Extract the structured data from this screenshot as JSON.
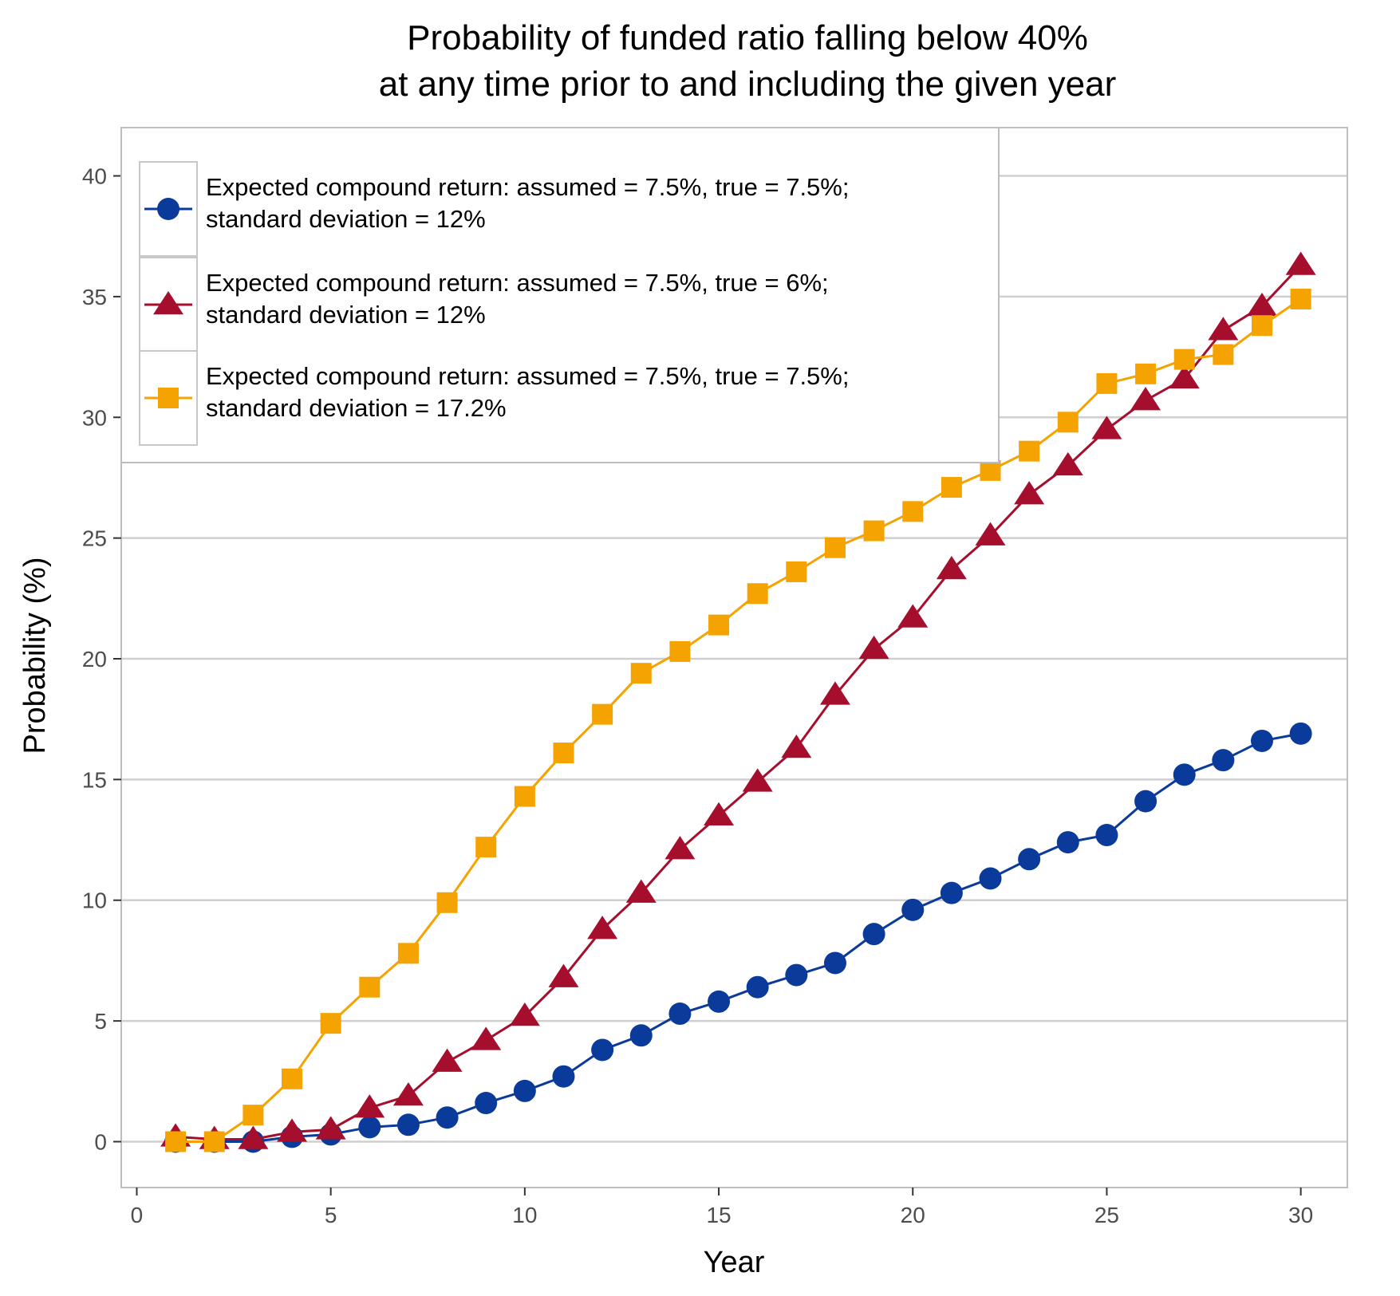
{
  "chart_data": {
    "type": "line",
    "title": [
      "Probability of funded ratio falling below 40%",
      "at any time prior to and including the given year"
    ],
    "xlabel": "Year",
    "ylabel": "Probability (%)",
    "xlim": [
      -0.4,
      31.2
    ],
    "ylim": [
      -1.9,
      42.0
    ],
    "xticks": [
      0,
      5,
      10,
      15,
      20,
      25,
      30
    ],
    "yticks": [
      0,
      5,
      10,
      15,
      20,
      25,
      30,
      35,
      40
    ],
    "grid": "horizontal-major",
    "legend_position": "top-left",
    "x": [
      1,
      2,
      3,
      4,
      5,
      6,
      7,
      8,
      9,
      10,
      11,
      12,
      13,
      14,
      15,
      16,
      17,
      18,
      19,
      20,
      21,
      22,
      23,
      24,
      25,
      26,
      27,
      28,
      29,
      30
    ],
    "series": [
      {
        "name_lines": [
          "Expected compound return: assumed = 7.5%, true = 7.5%;",
          "standard deviation = 12%"
        ],
        "color": "#0a3a9a",
        "marker": "circle",
        "values": [
          0,
          0,
          0,
          0.2,
          0.3,
          0.6,
          0.7,
          1.0,
          1.6,
          2.1,
          2.7,
          3.8,
          4.4,
          5.3,
          5.8,
          6.4,
          6.9,
          7.4,
          8.6,
          9.6,
          10.3,
          10.9,
          11.7,
          12.4,
          12.7,
          14.1,
          15.2,
          15.8,
          16.6,
          16.9
        ]
      },
      {
        "name_lines": [
          "Expected compound return: assumed = 7.5%, true = 6%;",
          "standard deviation = 12%"
        ],
        "color": "#a50f2d",
        "marker": "triangle",
        "values": [
          0.2,
          0.1,
          0.1,
          0.4,
          0.5,
          1.4,
          1.9,
          3.3,
          4.2,
          5.2,
          6.8,
          8.8,
          10.3,
          12.1,
          13.5,
          14.9,
          16.3,
          18.5,
          20.4,
          21.7,
          23.7,
          25.1,
          26.8,
          28.0,
          29.5,
          30.7,
          31.6,
          33.6,
          34.6,
          36.3
        ]
      },
      {
        "name_lines": [
          "Expected compound return: assumed = 7.5%, true = 7.5%;",
          "standard deviation = 17.2%"
        ],
        "color": "#f5a300",
        "marker": "square",
        "values": [
          0,
          0,
          1.1,
          2.6,
          4.9,
          6.4,
          7.8,
          9.9,
          12.2,
          14.3,
          16.1,
          17.7,
          19.4,
          20.3,
          21.4,
          22.7,
          23.6,
          24.6,
          25.3,
          26.1,
          27.1,
          27.8,
          28.6,
          29.8,
          31.4,
          31.8,
          32.4,
          32.6,
          33.8,
          34.9
        ]
      }
    ]
  }
}
